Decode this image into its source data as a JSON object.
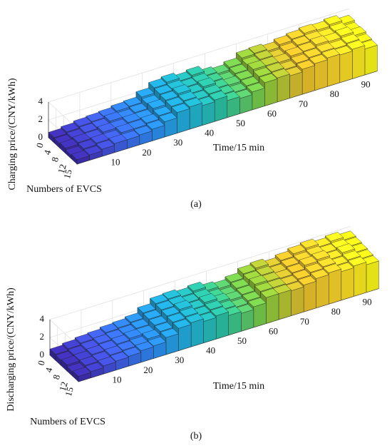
{
  "chart_data": [
    {
      "type": "bar3d",
      "caption": "(a)",
      "zlabel": "Charging price/(CNY/kWh)",
      "xlabel": "Time/15 min",
      "ylabel": "Numbers of EVCS",
      "xlim": [
        0,
        96
      ],
      "xticks": [
        10,
        20,
        30,
        40,
        50,
        60,
        70,
        80,
        90
      ],
      "ylim": [
        0,
        15
      ],
      "yticks": [
        0,
        4,
        8,
        12,
        15
      ],
      "zlim": [
        0,
        4
      ],
      "zticks": [
        0,
        2,
        4
      ],
      "grid": true,
      "colormap": [
        "#3e26a8",
        "#4256e0",
        "#2c88f0",
        "#1fb0d6",
        "#2ec39a",
        "#84cb3c",
        "#e4bc2c",
        "#f8d42a",
        "#f9fb15"
      ],
      "z": [
        [
          0.6,
          0.8,
          1.0,
          1.1,
          1.2,
          1.4,
          1.5,
          2.1,
          2.7,
          2.9,
          2.6,
          2.8,
          2.3,
          2.1,
          2.4,
          3.0,
          3.1,
          2.9,
          3.2,
          3.4,
          3.6,
          3.5,
          3.7,
          3.3
        ],
        [
          0.5,
          0.7,
          0.9,
          1.0,
          1.3,
          1.2,
          1.4,
          1.9,
          2.6,
          2.7,
          2.5,
          2.6,
          2.2,
          1.9,
          2.3,
          2.8,
          3.0,
          2.7,
          3.0,
          3.3,
          3.4,
          3.3,
          3.5,
          3.1
        ],
        [
          0.6,
          0.8,
          0.8,
          1.1,
          1.1,
          1.3,
          1.3,
          2.0,
          2.5,
          2.8,
          2.4,
          2.7,
          2.1,
          2.0,
          2.2,
          2.9,
          2.9,
          2.8,
          3.1,
          3.2,
          3.5,
          3.4,
          3.6,
          3.2
        ],
        [
          0.4,
          0.7,
          0.9,
          0.9,
          1.2,
          1.2,
          1.4,
          1.8,
          2.4,
          2.6,
          2.3,
          2.5,
          2.0,
          1.8,
          2.1,
          2.7,
          2.8,
          2.6,
          2.9,
          3.1,
          3.3,
          3.2,
          3.4,
          3.0
        ],
        [
          0.5,
          0.6,
          0.8,
          1.0,
          1.0,
          1.1,
          1.3,
          1.7,
          2.3,
          2.5,
          2.2,
          2.4,
          1.9,
          1.7,
          2.0,
          2.6,
          2.7,
          2.5,
          2.8,
          3.0,
          3.2,
          3.1,
          3.3,
          2.9
        ]
      ]
    },
    {
      "type": "bar3d",
      "caption": "(b)",
      "zlabel": "Discharging price/(CNY/kWh)",
      "xlabel": "Time/15 min",
      "ylabel": "Numbers of EVCS",
      "xlim": [
        0,
        96
      ],
      "xticks": [
        10,
        20,
        30,
        40,
        50,
        60,
        70,
        80,
        90
      ],
      "ylim": [
        0,
        15
      ],
      "yticks": [
        0,
        4,
        8,
        12,
        15
      ],
      "zlim": [
        0,
        4
      ],
      "zticks": [
        0,
        2,
        4
      ],
      "grid": true,
      "colormap": [
        "#3e26a8",
        "#4256e0",
        "#2c88f0",
        "#1fb0d6",
        "#2ec39a",
        "#84cb3c",
        "#e4bc2c",
        "#f8d42a",
        "#f9fb15"
      ],
      "z": [
        [
          0.7,
          0.9,
          1.1,
          1.2,
          1.4,
          1.5,
          1.7,
          2.3,
          2.9,
          3.0,
          2.8,
          3.0,
          2.6,
          2.4,
          2.7,
          3.2,
          3.4,
          3.1,
          3.4,
          3.7,
          3.9,
          3.6,
          3.8,
          3.5
        ],
        [
          0.6,
          0.8,
          1.0,
          1.2,
          1.3,
          1.4,
          1.6,
          2.2,
          2.8,
          2.9,
          2.7,
          2.8,
          2.4,
          2.2,
          2.6,
          3.1,
          3.2,
          3.0,
          3.3,
          3.5,
          3.7,
          3.5,
          3.6,
          3.4
        ],
        [
          0.7,
          0.8,
          1.0,
          1.1,
          1.3,
          1.5,
          1.5,
          2.1,
          2.7,
          3.0,
          2.6,
          2.9,
          2.5,
          2.3,
          2.5,
          3.2,
          3.1,
          3.0,
          3.2,
          3.6,
          3.8,
          3.4,
          3.7,
          3.3
        ],
        [
          0.5,
          0.8,
          0.9,
          1.1,
          1.2,
          1.3,
          1.6,
          2.0,
          2.6,
          2.8,
          2.5,
          2.7,
          2.3,
          2.1,
          2.4,
          3.0,
          3.0,
          2.9,
          3.1,
          3.4,
          3.6,
          3.3,
          3.5,
          3.2
        ],
        [
          0.6,
          0.7,
          0.9,
          1.0,
          1.1,
          1.3,
          1.4,
          1.9,
          2.5,
          2.7,
          2.4,
          2.6,
          2.2,
          2.0,
          2.3,
          2.9,
          2.9,
          2.8,
          3.0,
          3.3,
          3.5,
          3.2,
          3.4,
          3.1
        ]
      ]
    }
  ]
}
